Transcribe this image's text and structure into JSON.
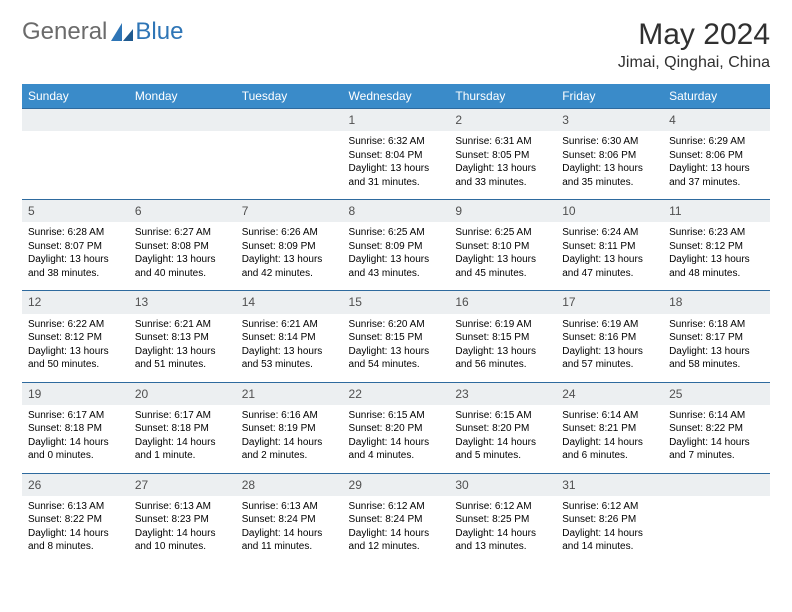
{
  "logo": {
    "text1": "General",
    "text2": "Blue"
  },
  "title": "May 2024",
  "location": "Jimai, Qinghai, China",
  "colors": {
    "header_bg": "#3a8bc9",
    "header_text": "#ffffff",
    "daynum_bg": "#eceff1",
    "row_border": "#2e6a9e",
    "logo_gray": "#6b6b6b",
    "logo_blue": "#2e75b6"
  },
  "daysOfWeek": [
    "Sunday",
    "Monday",
    "Tuesday",
    "Wednesday",
    "Thursday",
    "Friday",
    "Saturday"
  ],
  "cells": [
    {
      "blank": true
    },
    {
      "blank": true
    },
    {
      "blank": true
    },
    {
      "n": "1",
      "sr": "Sunrise: 6:32 AM",
      "ss": "Sunset: 8:04 PM",
      "d1": "Daylight: 13 hours",
      "d2": "and 31 minutes."
    },
    {
      "n": "2",
      "sr": "Sunrise: 6:31 AM",
      "ss": "Sunset: 8:05 PM",
      "d1": "Daylight: 13 hours",
      "d2": "and 33 minutes."
    },
    {
      "n": "3",
      "sr": "Sunrise: 6:30 AM",
      "ss": "Sunset: 8:06 PM",
      "d1": "Daylight: 13 hours",
      "d2": "and 35 minutes."
    },
    {
      "n": "4",
      "sr": "Sunrise: 6:29 AM",
      "ss": "Sunset: 8:06 PM",
      "d1": "Daylight: 13 hours",
      "d2": "and 37 minutes."
    },
    {
      "n": "5",
      "sr": "Sunrise: 6:28 AM",
      "ss": "Sunset: 8:07 PM",
      "d1": "Daylight: 13 hours",
      "d2": "and 38 minutes."
    },
    {
      "n": "6",
      "sr": "Sunrise: 6:27 AM",
      "ss": "Sunset: 8:08 PM",
      "d1": "Daylight: 13 hours",
      "d2": "and 40 minutes."
    },
    {
      "n": "7",
      "sr": "Sunrise: 6:26 AM",
      "ss": "Sunset: 8:09 PM",
      "d1": "Daylight: 13 hours",
      "d2": "and 42 minutes."
    },
    {
      "n": "8",
      "sr": "Sunrise: 6:25 AM",
      "ss": "Sunset: 8:09 PM",
      "d1": "Daylight: 13 hours",
      "d2": "and 43 minutes."
    },
    {
      "n": "9",
      "sr": "Sunrise: 6:25 AM",
      "ss": "Sunset: 8:10 PM",
      "d1": "Daylight: 13 hours",
      "d2": "and 45 minutes."
    },
    {
      "n": "10",
      "sr": "Sunrise: 6:24 AM",
      "ss": "Sunset: 8:11 PM",
      "d1": "Daylight: 13 hours",
      "d2": "and 47 minutes."
    },
    {
      "n": "11",
      "sr": "Sunrise: 6:23 AM",
      "ss": "Sunset: 8:12 PM",
      "d1": "Daylight: 13 hours",
      "d2": "and 48 minutes."
    },
    {
      "n": "12",
      "sr": "Sunrise: 6:22 AM",
      "ss": "Sunset: 8:12 PM",
      "d1": "Daylight: 13 hours",
      "d2": "and 50 minutes."
    },
    {
      "n": "13",
      "sr": "Sunrise: 6:21 AM",
      "ss": "Sunset: 8:13 PM",
      "d1": "Daylight: 13 hours",
      "d2": "and 51 minutes."
    },
    {
      "n": "14",
      "sr": "Sunrise: 6:21 AM",
      "ss": "Sunset: 8:14 PM",
      "d1": "Daylight: 13 hours",
      "d2": "and 53 minutes."
    },
    {
      "n": "15",
      "sr": "Sunrise: 6:20 AM",
      "ss": "Sunset: 8:15 PM",
      "d1": "Daylight: 13 hours",
      "d2": "and 54 minutes."
    },
    {
      "n": "16",
      "sr": "Sunrise: 6:19 AM",
      "ss": "Sunset: 8:15 PM",
      "d1": "Daylight: 13 hours",
      "d2": "and 56 minutes."
    },
    {
      "n": "17",
      "sr": "Sunrise: 6:19 AM",
      "ss": "Sunset: 8:16 PM",
      "d1": "Daylight: 13 hours",
      "d2": "and 57 minutes."
    },
    {
      "n": "18",
      "sr": "Sunrise: 6:18 AM",
      "ss": "Sunset: 8:17 PM",
      "d1": "Daylight: 13 hours",
      "d2": "and 58 minutes."
    },
    {
      "n": "19",
      "sr": "Sunrise: 6:17 AM",
      "ss": "Sunset: 8:18 PM",
      "d1": "Daylight: 14 hours",
      "d2": "and 0 minutes."
    },
    {
      "n": "20",
      "sr": "Sunrise: 6:17 AM",
      "ss": "Sunset: 8:18 PM",
      "d1": "Daylight: 14 hours",
      "d2": "and 1 minute."
    },
    {
      "n": "21",
      "sr": "Sunrise: 6:16 AM",
      "ss": "Sunset: 8:19 PM",
      "d1": "Daylight: 14 hours",
      "d2": "and 2 minutes."
    },
    {
      "n": "22",
      "sr": "Sunrise: 6:15 AM",
      "ss": "Sunset: 8:20 PM",
      "d1": "Daylight: 14 hours",
      "d2": "and 4 minutes."
    },
    {
      "n": "23",
      "sr": "Sunrise: 6:15 AM",
      "ss": "Sunset: 8:20 PM",
      "d1": "Daylight: 14 hours",
      "d2": "and 5 minutes."
    },
    {
      "n": "24",
      "sr": "Sunrise: 6:14 AM",
      "ss": "Sunset: 8:21 PM",
      "d1": "Daylight: 14 hours",
      "d2": "and 6 minutes."
    },
    {
      "n": "25",
      "sr": "Sunrise: 6:14 AM",
      "ss": "Sunset: 8:22 PM",
      "d1": "Daylight: 14 hours",
      "d2": "and 7 minutes."
    },
    {
      "n": "26",
      "sr": "Sunrise: 6:13 AM",
      "ss": "Sunset: 8:22 PM",
      "d1": "Daylight: 14 hours",
      "d2": "and 8 minutes."
    },
    {
      "n": "27",
      "sr": "Sunrise: 6:13 AM",
      "ss": "Sunset: 8:23 PM",
      "d1": "Daylight: 14 hours",
      "d2": "and 10 minutes."
    },
    {
      "n": "28",
      "sr": "Sunrise: 6:13 AM",
      "ss": "Sunset: 8:24 PM",
      "d1": "Daylight: 14 hours",
      "d2": "and 11 minutes."
    },
    {
      "n": "29",
      "sr": "Sunrise: 6:12 AM",
      "ss": "Sunset: 8:24 PM",
      "d1": "Daylight: 14 hours",
      "d2": "and 12 minutes."
    },
    {
      "n": "30",
      "sr": "Sunrise: 6:12 AM",
      "ss": "Sunset: 8:25 PM",
      "d1": "Daylight: 14 hours",
      "d2": "and 13 minutes."
    },
    {
      "n": "31",
      "sr": "Sunrise: 6:12 AM",
      "ss": "Sunset: 8:26 PM",
      "d1": "Daylight: 14 hours",
      "d2": "and 14 minutes."
    },
    {
      "blank": true
    }
  ]
}
